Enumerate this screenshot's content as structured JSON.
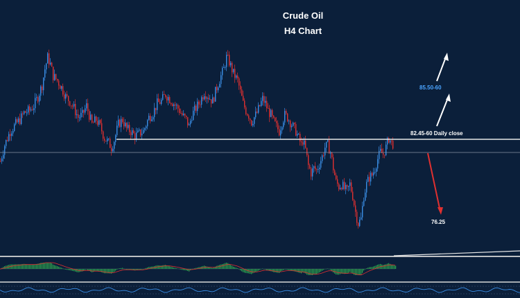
{
  "chart_data": {
    "type": "candlestick",
    "instrument": "Crude Oil",
    "timeframe": "H4 Chart",
    "title": "Crude Oil",
    "subtitle": "H4 Chart",
    "annotations": {
      "target_up": "85.50-60",
      "resistance": "82.45-60 Daily close",
      "target_down": "76.25"
    },
    "levels": {
      "resistance": 82.5,
      "current_price": 82.1,
      "target_down": 76.25,
      "target_up": 85.55
    },
    "colors": {
      "background": "#0b1f3a",
      "bull_candle": "#3a8ee6",
      "bear_candle": "#e03030",
      "level_line": "#ffffff",
      "target_up_text": "#4aa3ff",
      "macd_histogram": "#2fa84f",
      "macd_signal": "#e03030",
      "oscillator": "#3a8ee6"
    },
    "path_points": [
      [
        0,
        80.6
      ],
      [
        6,
        82.0
      ],
      [
        14,
        83.2
      ],
      [
        22,
        83.8
      ],
      [
        28,
        84.2
      ],
      [
        34,
        84.8
      ],
      [
        42,
        85.0
      ],
      [
        48,
        85.4
      ],
      [
        54,
        86.2
      ],
      [
        60,
        87.2
      ],
      [
        64,
        88.6
      ],
      [
        68,
        89.6
      ],
      [
        72,
        89.0
      ],
      [
        76,
        88.0
      ],
      [
        82,
        87.6
      ],
      [
        88,
        87.0
      ],
      [
        94,
        86.2
      ],
      [
        100,
        85.8
      ],
      [
        106,
        85.2
      ],
      [
        112,
        84.4
      ],
      [
        118,
        84.6
      ],
      [
        124,
        85.4
      ],
      [
        128,
        84.6
      ],
      [
        132,
        83.8
      ],
      [
        138,
        84.2
      ],
      [
        144,
        83.6
      ],
      [
        150,
        82.6
      ],
      [
        156,
        82.2
      ],
      [
        160,
        81.8
      ],
      [
        164,
        82.4
      ],
      [
        170,
        83.8
      ],
      [
        176,
        84.2
      ],
      [
        182,
        83.4
      ],
      [
        188,
        83.2
      ],
      [
        194,
        82.8
      ],
      [
        200,
        83.0
      ],
      [
        206,
        83.2
      ],
      [
        210,
        83.8
      ],
      [
        214,
        84.4
      ],
      [
        220,
        84.8
      ],
      [
        226,
        85.6
      ],
      [
        232,
        85.8
      ],
      [
        238,
        86.4
      ],
      [
        244,
        86.0
      ],
      [
        250,
        85.6
      ],
      [
        256,
        85.2
      ],
      [
        262,
        84.6
      ],
      [
        268,
        84.2
      ],
      [
        272,
        83.6
      ],
      [
        276,
        84.6
      ],
      [
        282,
        85.2
      ],
      [
        288,
        85.8
      ],
      [
        294,
        86.6
      ],
      [
        300,
        86.2
      ],
      [
        306,
        85.8
      ],
      [
        312,
        87.0
      ],
      [
        318,
        88.0
      ],
      [
        322,
        88.6
      ],
      [
        326,
        89.6
      ],
      [
        330,
        89.2
      ],
      [
        336,
        88.2
      ],
      [
        342,
        87.6
      ],
      [
        346,
        86.6
      ],
      [
        350,
        85.6
      ],
      [
        354,
        85.0
      ],
      [
        358,
        84.6
      ],
      [
        362,
        84.0
      ],
      [
        366,
        84.4
      ],
      [
        370,
        84.8
      ],
      [
        374,
        85.4
      ],
      [
        378,
        86.0
      ],
      [
        382,
        85.6
      ],
      [
        386,
        85.0
      ],
      [
        390,
        84.6
      ],
      [
        394,
        84.0
      ],
      [
        398,
        83.6
      ],
      [
        402,
        83.2
      ],
      [
        406,
        84.0
      ],
      [
        410,
        84.6
      ],
      [
        414,
        84.4
      ],
      [
        418,
        84.0
      ],
      [
        422,
        83.6
      ],
      [
        426,
        83.2
      ],
      [
        430,
        82.6
      ],
      [
        434,
        82.0
      ],
      [
        436,
        82.4
      ],
      [
        440,
        81.6
      ],
      [
        444,
        80.2
      ],
      [
        448,
        79.6
      ],
      [
        452,
        80.0
      ],
      [
        456,
        79.8
      ],
      [
        460,
        80.4
      ],
      [
        464,
        81.0
      ],
      [
        468,
        81.8
      ],
      [
        472,
        82.0
      ],
      [
        476,
        81.4
      ],
      [
        480,
        80.0
      ],
      [
        484,
        78.8
      ],
      [
        488,
        78.4
      ],
      [
        492,
        78.6
      ],
      [
        496,
        78.2
      ],
      [
        500,
        78.0
      ],
      [
        504,
        78.6
      ],
      [
        508,
        77.6
      ],
      [
        512,
        76.2
      ],
      [
        516,
        75.2
      ],
      [
        520,
        75.6
      ],
      [
        524,
        77.6
      ],
      [
        528,
        78.6
      ],
      [
        532,
        79.2
      ],
      [
        536,
        79.4
      ],
      [
        540,
        80.0
      ],
      [
        544,
        80.8
      ],
      [
        548,
        81.4
      ],
      [
        552,
        81.2
      ],
      [
        556,
        81.8
      ],
      [
        560,
        82.6
      ],
      [
        564,
        82.2
      ],
      [
        568,
        82.0
      ]
    ]
  }
}
